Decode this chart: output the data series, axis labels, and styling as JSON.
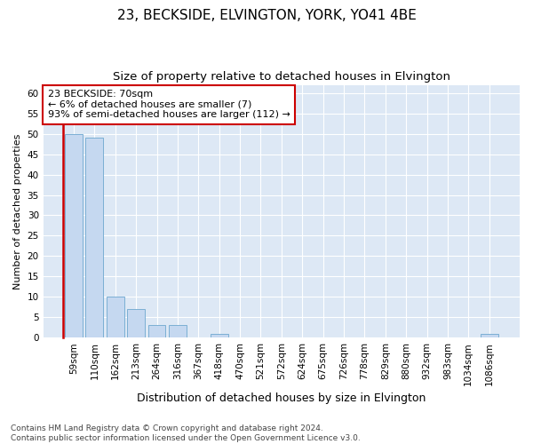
{
  "title": "23, BECKSIDE, ELVINGTON, YORK, YO41 4BE",
  "subtitle": "Size of property relative to detached houses in Elvington",
  "xlabel": "Distribution of detached houses by size in Elvington",
  "ylabel": "Number of detached properties",
  "categories": [
    "59sqm",
    "110sqm",
    "162sqm",
    "213sqm",
    "264sqm",
    "316sqm",
    "367sqm",
    "418sqm",
    "470sqm",
    "521sqm",
    "572sqm",
    "624sqm",
    "675sqm",
    "726sqm",
    "778sqm",
    "829sqm",
    "880sqm",
    "932sqm",
    "983sqm",
    "1034sqm",
    "1086sqm"
  ],
  "values": [
    50,
    49,
    10,
    7,
    3,
    3,
    0,
    1,
    0,
    0,
    0,
    0,
    0,
    0,
    0,
    0,
    0,
    0,
    0,
    0,
    1
  ],
  "bar_color": "#c5d8f0",
  "bar_edge_color": "#7bafd4",
  "annotation_text": "23 BECKSIDE: 70sqm\n← 6% of detached houses are smaller (7)\n93% of semi-detached houses are larger (112) →",
  "annotation_box_facecolor": "#ffffff",
  "annotation_box_edgecolor": "#cc0000",
  "red_line_color": "#cc0000",
  "ylim": [
    0,
    62
  ],
  "yticks": [
    0,
    5,
    10,
    15,
    20,
    25,
    30,
    35,
    40,
    45,
    50,
    55,
    60
  ],
  "footnote": "Contains HM Land Registry data © Crown copyright and database right 2024.\nContains public sector information licensed under the Open Government Licence v3.0.",
  "figure_bg": "#ffffff",
  "plot_bg": "#dde8f5",
  "grid_color": "#ffffff",
  "title_fontsize": 11,
  "subtitle_fontsize": 9.5,
  "xlabel_fontsize": 9,
  "ylabel_fontsize": 8,
  "tick_fontsize": 7.5,
  "annotation_fontsize": 8,
  "footnote_fontsize": 6.5
}
